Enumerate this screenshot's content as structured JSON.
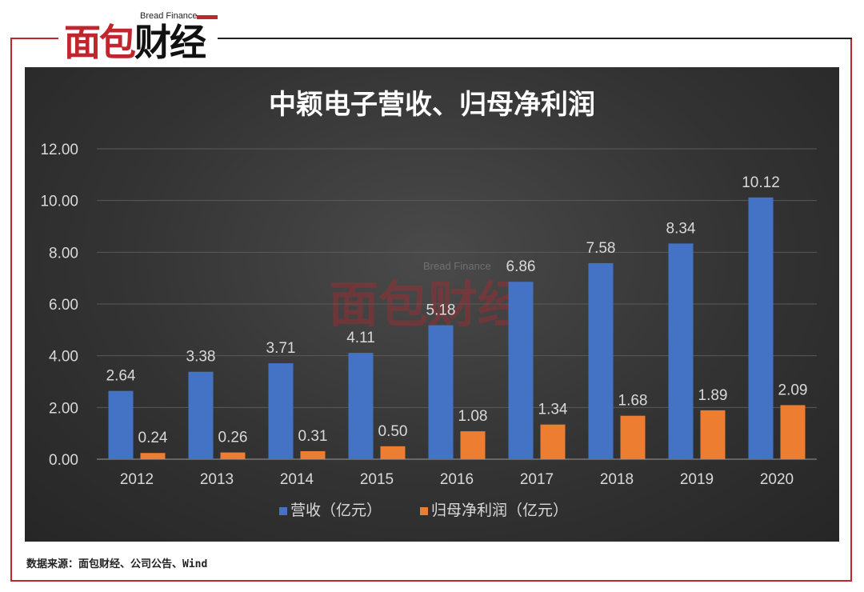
{
  "logo": {
    "text_red": "面包",
    "text_black": "财经",
    "sub": "Bread Finance"
  },
  "watermark": {
    "text": "面包财经",
    "sub": "Bread Finance"
  },
  "source_note": "数据来源：面包财经、公司公告、Wind",
  "colors": {
    "revenue": "#4472c4",
    "profit": "#ed7d31",
    "frame": "#c0262d"
  },
  "chart_data": {
    "type": "bar",
    "title": "中颖电子营收、归母净利润",
    "categories": [
      "2012",
      "2013",
      "2014",
      "2015",
      "2016",
      "2017",
      "2018",
      "2019",
      "2020"
    ],
    "series": [
      {
        "name": "营收（亿元）",
        "values": [
          2.64,
          3.38,
          3.71,
          4.11,
          5.18,
          6.86,
          7.58,
          8.34,
          10.12
        ]
      },
      {
        "name": "归母净利润（亿元）",
        "values": [
          0.24,
          0.26,
          0.31,
          0.5,
          1.08,
          1.34,
          1.68,
          1.89,
          2.09
        ]
      }
    ],
    "ylim": [
      0,
      12
    ],
    "yticks": [
      "0.00",
      "2.00",
      "4.00",
      "6.00",
      "8.00",
      "10.00",
      "12.00"
    ],
    "grid": true,
    "legend": "bottom"
  }
}
